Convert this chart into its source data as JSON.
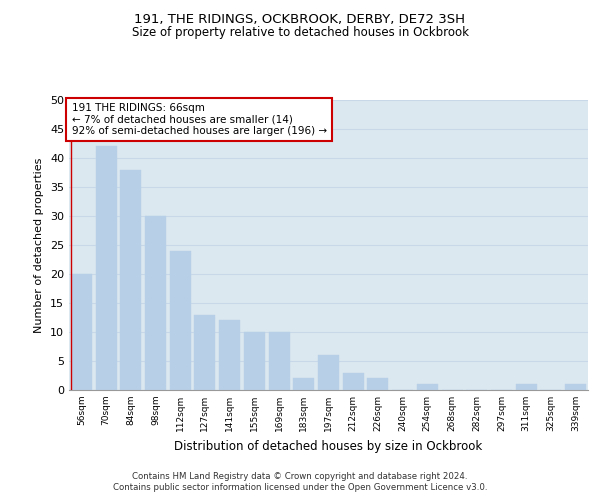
{
  "title": "191, THE RIDINGS, OCKBROOK, DERBY, DE72 3SH",
  "subtitle": "Size of property relative to detached houses in Ockbrook",
  "xlabel": "Distribution of detached houses by size in Ockbrook",
  "ylabel": "Number of detached properties",
  "categories": [
    "56sqm",
    "70sqm",
    "84sqm",
    "98sqm",
    "112sqm",
    "127sqm",
    "141sqm",
    "155sqm",
    "169sqm",
    "183sqm",
    "197sqm",
    "212sqm",
    "226sqm",
    "240sqm",
    "254sqm",
    "268sqm",
    "282sqm",
    "297sqm",
    "311sqm",
    "325sqm",
    "339sqm"
  ],
  "values": [
    20,
    42,
    38,
    30,
    24,
    13,
    12,
    10,
    10,
    2,
    6,
    3,
    2,
    0,
    1,
    0,
    0,
    0,
    1,
    0,
    1
  ],
  "bar_color": "#b8cfe8",
  "bar_edgecolor": "#b8cfe8",
  "grid_color": "#c8d8e8",
  "background_color": "#dce8f0",
  "marker_line_color": "#cc0000",
  "ylim": [
    0,
    50
  ],
  "yticks": [
    0,
    5,
    10,
    15,
    20,
    25,
    30,
    35,
    40,
    45,
    50
  ],
  "annotation_line1": "191 THE RIDINGS: 66sqm",
  "annotation_line2": "← 7% of detached houses are smaller (14)",
  "annotation_line3": "92% of semi-detached houses are larger (196) →",
  "annotation_box_color": "#ffffff",
  "annotation_box_edgecolor": "#cc0000",
  "footer_line1": "Contains HM Land Registry data © Crown copyright and database right 2024.",
  "footer_line2": "Contains public sector information licensed under the Open Government Licence v3.0."
}
